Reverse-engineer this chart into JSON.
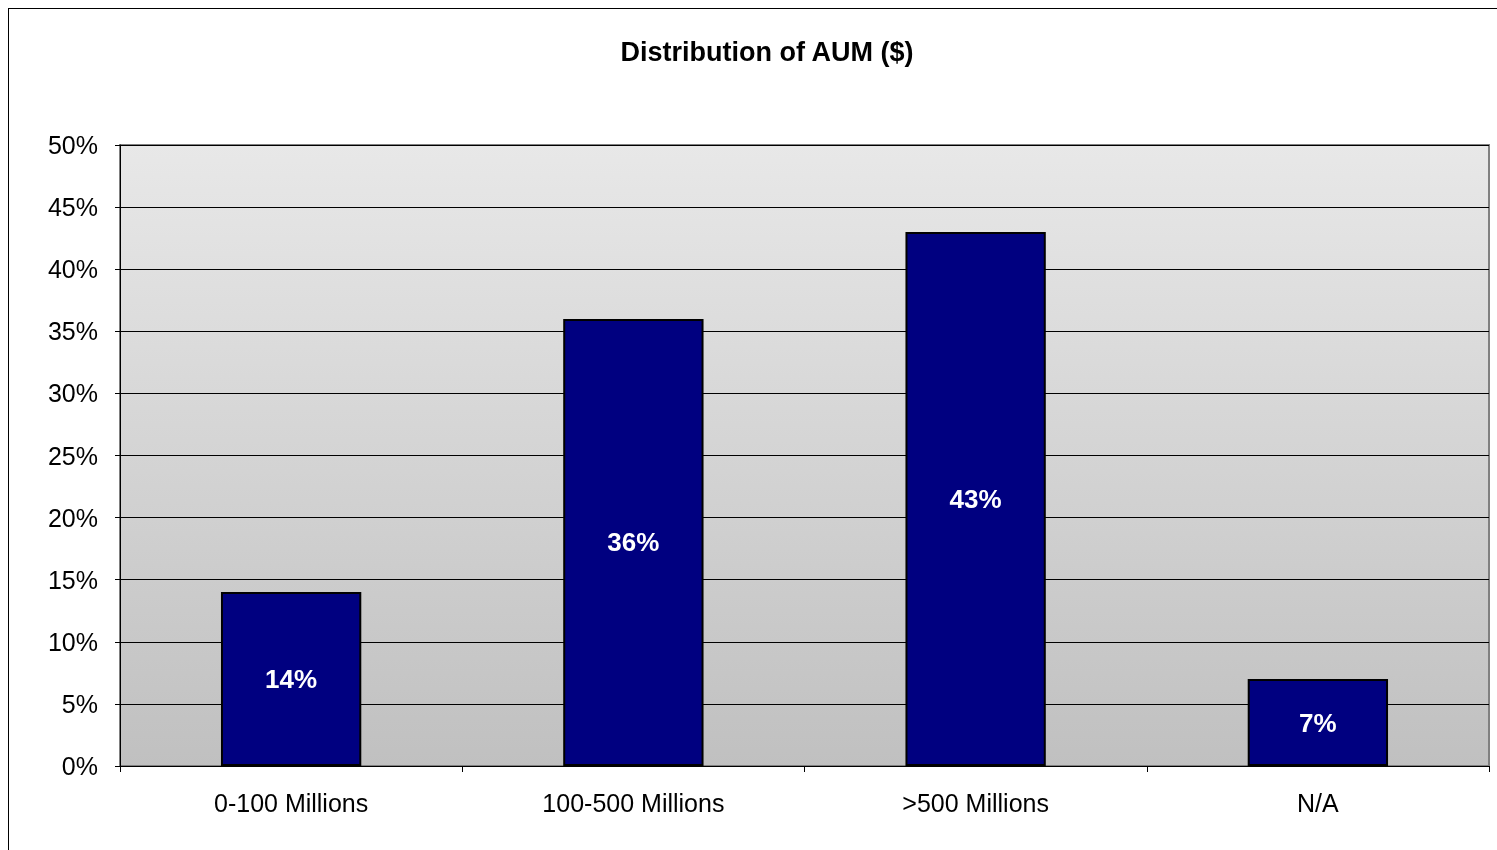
{
  "chart_data": {
    "type": "bar",
    "title": "Distribution of AUM ($)",
    "categories": [
      "0-100 Millions",
      "100-500 Millions",
      ">500 Millions",
      "N/A"
    ],
    "values": [
      14,
      36,
      43,
      7
    ],
    "value_labels": [
      "14%",
      "36%",
      "43%",
      "7%"
    ],
    "color": "#000080",
    "ylim": [
      0,
      50
    ],
    "yticks": [
      {
        "value": 0,
        "label": "0%"
      },
      {
        "value": 5,
        "label": "5%"
      },
      {
        "value": 10,
        "label": "10%"
      },
      {
        "value": 15,
        "label": "15%"
      },
      {
        "value": 20,
        "label": "20%"
      },
      {
        "value": 25,
        "label": "25%"
      },
      {
        "value": 30,
        "label": "30%"
      },
      {
        "value": 35,
        "label": "35%"
      },
      {
        "value": 40,
        "label": "40%"
      },
      {
        "value": 45,
        "label": "45%"
      },
      {
        "value": 50,
        "label": "50%"
      }
    ],
    "grid": "y"
  }
}
